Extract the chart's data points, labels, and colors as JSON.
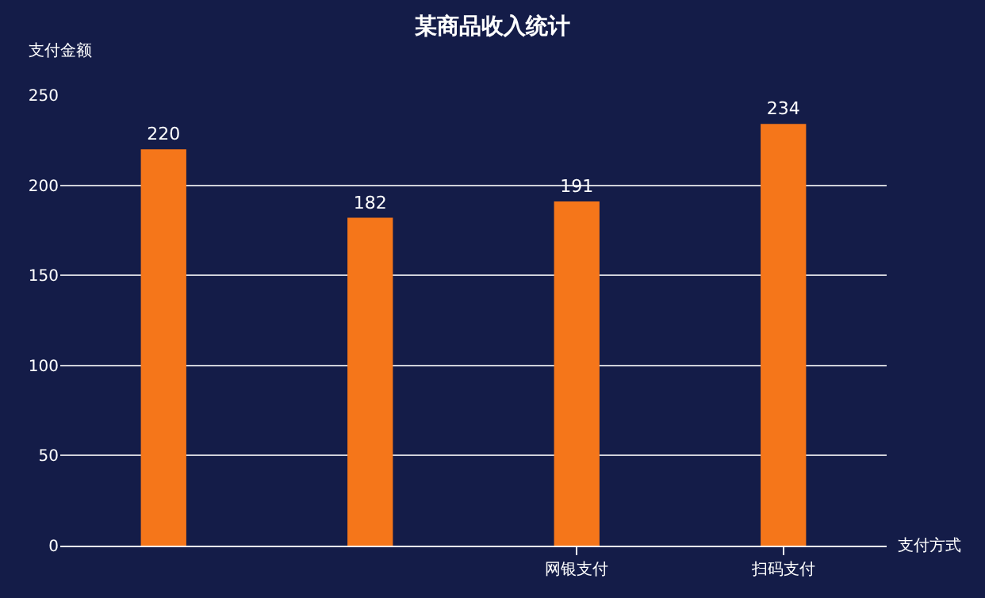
{
  "chart_data": {
    "type": "bar",
    "title": "某商品收入统计",
    "xlabel": "支付方式",
    "ylabel": "支付金额",
    "categories": [
      null,
      null,
      "网银支付",
      "扫码支付"
    ],
    "values": [
      220,
      182,
      191,
      234
    ],
    "color": "#f5761a",
    "ylim": [
      0,
      250
    ],
    "yticks": [
      0,
      50,
      100,
      150,
      200,
      250
    ],
    "grid": "y",
    "data_labels": true,
    "legend": false
  }
}
